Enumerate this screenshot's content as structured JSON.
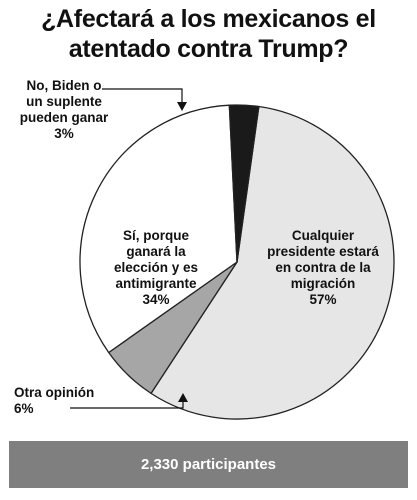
{
  "title_lines": [
    "¿Afectará a los mexicanos el",
    "atentado contra Trump?"
  ],
  "footer": "2,330 participantes",
  "chart_data": {
    "type": "pie",
    "title": "¿Afectará a los mexicanos el atentado contra Trump?",
    "slices": [
      {
        "label_lines": [
          "Cualquier",
          "presidente estará",
          "en contra de la",
          "migración"
        ],
        "value": 57,
        "value_label": "57%",
        "color": "#e6e6e6"
      },
      {
        "label_lines": [
          "Otra opinión"
        ],
        "value": 6,
        "value_label": "6%",
        "color": "#a6a6a6"
      },
      {
        "label_lines": [
          "Sí, porque",
          "ganará la",
          "elección y es",
          "antimigrante"
        ],
        "value": 34,
        "value_label": "34%",
        "color": "#ffffff"
      },
      {
        "label_lines": [
          "No, Biden o",
          "un suplente",
          "pueden ganar"
        ],
        "value": 3,
        "value_label": "3%",
        "color": "#1a1a1a"
      }
    ]
  }
}
